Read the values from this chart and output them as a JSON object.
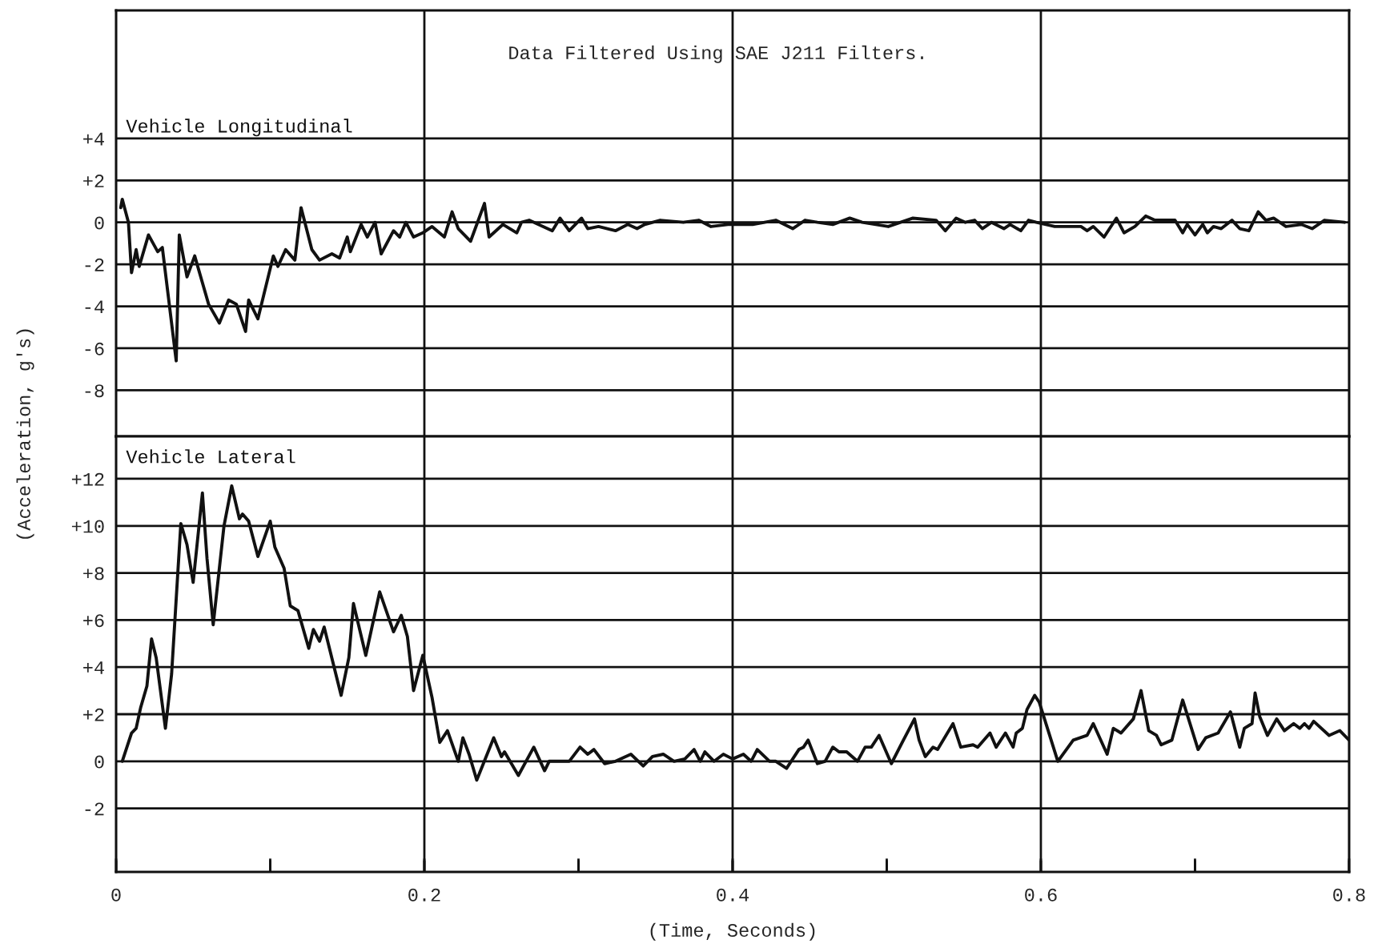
{
  "chart_data": [
    {
      "type": "line",
      "title": "Data Filtered Using SAE J211 Filters.",
      "ylabel": "(Acceleration, g's)",
      "xlim": [
        0,
        0.8
      ],
      "ylim": [
        -10.2,
        10.1
      ],
      "yticks": [
        {
          "value": 4,
          "label": "+4"
        },
        {
          "value": 2,
          "label": "+2"
        },
        0,
        {
          "value": -2,
          "label": "-2"
        },
        {
          "value": -4,
          "label": "-4"
        },
        {
          "value": -6,
          "label": "-6"
        },
        {
          "value": -8,
          "label": "-8"
        }
      ],
      "grid": "y",
      "tick_labels": "y",
      "legend": false,
      "line_style": "solid",
      "ref_lines": [
        {
          "axis": "x",
          "value": 0.2,
          "label": null
        },
        {
          "axis": "x",
          "value": 0.4,
          "label": null
        },
        {
          "axis": "x",
          "value": 0.6,
          "label": null
        }
      ],
      "series": [
        {
          "name": "Vehicle Longitudinal",
          "color": "#111111",
          "x": [
            0.003,
            0.004,
            0.008,
            0.01,
            0.013,
            0.015,
            0.021,
            0.027,
            0.03,
            0.039,
            0.041,
            0.046,
            0.051,
            0.06,
            0.067,
            0.073,
            0.078,
            0.084,
            0.086,
            0.092,
            0.102,
            0.105,
            0.11,
            0.116,
            0.12,
            0.127,
            0.132,
            0.14,
            0.145,
            0.15,
            0.152,
            0.159,
            0.163,
            0.168,
            0.172,
            0.18,
            0.184,
            0.188,
            0.193,
            0.199,
            0.205,
            0.213,
            0.218,
            0.222,
            0.23,
            0.239,
            0.242,
            0.251,
            0.26,
            0.263,
            0.268,
            0.283,
            0.288,
            0.294,
            0.302,
            0.306,
            0.313,
            0.324,
            0.332,
            0.338,
            0.343,
            0.353,
            0.368,
            0.378,
            0.386,
            0.397,
            0.413,
            0.428,
            0.439,
            0.447,
            0.455,
            0.465,
            0.476,
            0.484,
            0.501,
            0.517,
            0.532,
            0.538,
            0.545,
            0.551,
            0.557,
            0.562,
            0.568,
            0.576,
            0.58,
            0.587,
            0.592,
            0.597,
            0.609,
            0.626,
            0.63,
            0.634,
            0.641,
            0.649,
            0.654,
            0.661,
            0.668,
            0.674,
            0.68,
            0.687,
            0.692,
            0.695,
            0.7,
            0.705,
            0.708,
            0.712,
            0.717,
            0.724,
            0.729,
            0.735,
            0.741,
            0.746,
            0.751,
            0.759,
            0.769,
            0.776,
            0.784,
            0.797
          ],
          "values": [
            0.7,
            1.1,
            0.0,
            -2.4,
            -1.3,
            -2.1,
            -0.6,
            -1.4,
            -1.2,
            -6.6,
            -0.6,
            -2.6,
            -1.6,
            -3.9,
            -4.8,
            -3.7,
            -3.9,
            -5.2,
            -3.7,
            -4.6,
            -1.6,
            -2.1,
            -1.3,
            -1.8,
            0.7,
            -1.3,
            -1.8,
            -1.5,
            -1.7,
            -0.7,
            -1.4,
            -0.1,
            -0.7,
            0.0,
            -1.5,
            -0.4,
            -0.7,
            0.0,
            -0.7,
            -0.5,
            -0.2,
            -0.7,
            0.5,
            -0.3,
            -0.9,
            0.9,
            -0.7,
            -0.1,
            -0.5,
            0.0,
            0.1,
            -0.4,
            0.2,
            -0.4,
            0.2,
            -0.3,
            -0.2,
            -0.4,
            -0.1,
            -0.3,
            -0.1,
            0.1,
            0.0,
            0.1,
            -0.2,
            -0.1,
            -0.1,
            0.1,
            -0.3,
            0.1,
            0.0,
            -0.1,
            0.2,
            0.0,
            -0.2,
            0.2,
            0.1,
            -0.4,
            0.2,
            0.0,
            0.1,
            -0.3,
            0.0,
            -0.3,
            -0.1,
            -0.4,
            0.1,
            0.0,
            -0.2,
            -0.2,
            -0.4,
            -0.2,
            -0.7,
            0.2,
            -0.5,
            -0.2,
            0.3,
            0.1,
            0.1,
            0.1,
            -0.5,
            -0.1,
            -0.6,
            -0.1,
            -0.5,
            -0.2,
            -0.3,
            0.1,
            -0.3,
            -0.4,
            0.5,
            0.1,
            0.2,
            -0.2,
            -0.1,
            -0.3,
            0.1,
            0.0
          ]
        }
      ]
    },
    {
      "type": "line",
      "xlabel": "(Time, Seconds)",
      "xlim": [
        0,
        0.8
      ],
      "xticks": [
        0,
        {
          "value": 0.1,
          "label": null
        },
        0.2,
        {
          "value": 0.3,
          "label": null
        },
        0.4,
        {
          "value": 0.5,
          "label": null
        },
        0.6,
        {
          "value": 0.7,
          "label": null
        },
        0.8
      ],
      "ylim": [
        -4.7,
        13.8
      ],
      "yticks": [
        {
          "value": 12,
          "label": "+12"
        },
        {
          "value": 10,
          "label": "+10"
        },
        {
          "value": 8,
          "label": "+8"
        },
        {
          "value": 6,
          "label": "+6"
        },
        {
          "value": 4,
          "label": "+4"
        },
        {
          "value": 2,
          "label": "+2"
        },
        0,
        {
          "value": -2,
          "label": "-2"
        }
      ],
      "grid": "y",
      "legend": false,
      "line_style": "solid",
      "ref_lines": [
        {
          "axis": "x",
          "value": 0.2,
          "label": null
        },
        {
          "axis": "x",
          "value": 0.4,
          "label": null
        },
        {
          "axis": "x",
          "value": 0.6,
          "label": null
        }
      ],
      "series": [
        {
          "name": "Vehicle Lateral",
          "color": "#111111",
          "x": [
            0.004,
            0.01,
            0.013,
            0.016,
            0.02,
            0.023,
            0.026,
            0.032,
            0.036,
            0.039,
            0.042,
            0.046,
            0.05,
            0.056,
            0.059,
            0.063,
            0.07,
            0.075,
            0.08,
            0.082,
            0.086,
            0.092,
            0.1,
            0.103,
            0.109,
            0.113,
            0.118,
            0.125,
            0.128,
            0.132,
            0.135,
            0.146,
            0.151,
            0.154,
            0.162,
            0.171,
            0.18,
            0.185,
            0.189,
            0.193,
            0.199,
            0.205,
            0.21,
            0.215,
            0.222,
            0.225,
            0.229,
            0.234,
            0.245,
            0.25,
            0.252,
            0.261,
            0.271,
            0.278,
            0.281,
            0.29,
            0.294,
            0.301,
            0.306,
            0.31,
            0.317,
            0.324,
            0.334,
            0.342,
            0.348,
            0.355,
            0.362,
            0.369,
            0.375,
            0.379,
            0.382,
            0.388,
            0.394,
            0.4,
            0.407,
            0.412,
            0.416,
            0.424,
            0.428,
            0.435,
            0.443,
            0.446,
            0.449,
            0.455,
            0.46,
            0.465,
            0.469,
            0.474,
            0.481,
            0.486,
            0.49,
            0.495,
            0.503,
            0.51,
            0.518,
            0.521,
            0.525,
            0.53,
            0.533,
            0.543,
            0.548,
            0.556,
            0.559,
            0.567,
            0.571,
            0.577,
            0.582,
            0.584,
            0.588,
            0.591,
            0.596,
            0.599,
            0.611,
            0.621,
            0.63,
            0.634,
            0.643,
            0.647,
            0.652,
            0.66,
            0.665,
            0.67,
            0.675,
            0.678,
            0.685,
            0.692,
            0.702,
            0.707,
            0.715,
            0.723,
            0.729,
            0.732,
            0.737,
            0.739,
            0.742,
            0.747,
            0.753,
            0.758,
            0.764,
            0.768,
            0.771,
            0.774,
            0.777,
            0.787,
            0.794,
            0.8
          ],
          "values": [
            0.0,
            1.2,
            1.4,
            2.3,
            3.2,
            5.2,
            4.4,
            1.4,
            3.7,
            6.9,
            10.1,
            9.2,
            7.6,
            11.4,
            8.6,
            5.8,
            10.0,
            11.7,
            10.3,
            10.5,
            10.2,
            8.7,
            10.2,
            9.1,
            8.2,
            6.6,
            6.4,
            4.8,
            5.6,
            5.1,
            5.7,
            2.8,
            4.4,
            6.7,
            4.5,
            7.2,
            5.5,
            6.2,
            5.3,
            3.0,
            4.5,
            2.7,
            0.8,
            1.3,
            0.0,
            1.0,
            0.3,
            -0.8,
            1.0,
            0.2,
            0.4,
            -0.6,
            0.6,
            -0.4,
            0.0,
            0.0,
            0.0,
            0.6,
            0.3,
            0.5,
            -0.1,
            0.0,
            0.3,
            -0.2,
            0.2,
            0.3,
            0.0,
            0.1,
            0.5,
            0.0,
            0.4,
            0.0,
            0.3,
            0.1,
            0.3,
            0.0,
            0.5,
            0.0,
            0.0,
            -0.3,
            0.5,
            0.6,
            0.9,
            -0.1,
            0.0,
            0.6,
            0.4,
            0.4,
            0.0,
            0.6,
            0.6,
            1.1,
            -0.1,
            0.8,
            1.8,
            0.9,
            0.2,
            0.6,
            0.5,
            1.6,
            0.6,
            0.7,
            0.6,
            1.2,
            0.6,
            1.2,
            0.6,
            1.2,
            1.4,
            2.2,
            2.8,
            2.5,
            0.0,
            0.9,
            1.1,
            1.6,
            0.3,
            1.4,
            1.2,
            1.8,
            3.0,
            1.3,
            1.1,
            0.7,
            0.9,
            2.6,
            0.5,
            1.0,
            1.2,
            2.1,
            0.6,
            1.4,
            1.6,
            2.9,
            1.9,
            1.1,
            1.8,
            1.3,
            1.6,
            1.4,
            1.6,
            1.4,
            1.7,
            1.1,
            1.3,
            0.9
          ]
        }
      ]
    }
  ]
}
